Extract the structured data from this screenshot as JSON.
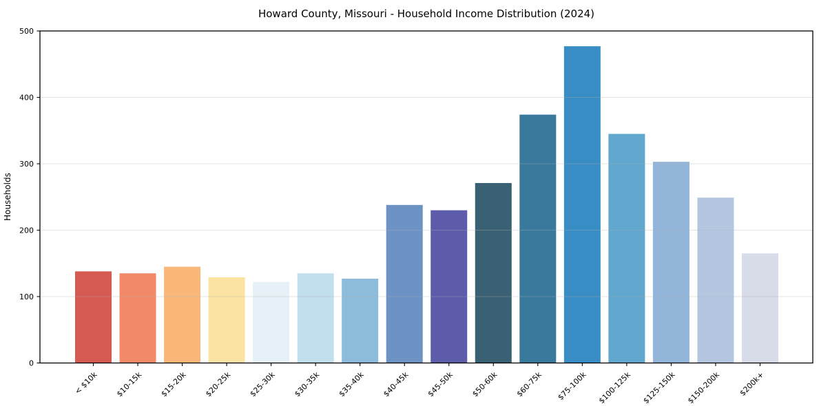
{
  "chart_data": {
    "type": "bar",
    "title": "Howard County, Missouri - Household Income Distribution (2024)",
    "xlabel": "",
    "ylabel": "Households",
    "categories": [
      "< $10k",
      "$10-15k",
      "$15-20k",
      "$20-25k",
      "$25-30k",
      "$30-35k",
      "$35-40k",
      "$40-45k",
      "$45-50k",
      "$50-60k",
      "$60-75k",
      "$75-100k",
      "$100-125k",
      "$125-150k",
      "$150-200k",
      "$200k+"
    ],
    "values": [
      138,
      135,
      145,
      129,
      122,
      135,
      127,
      238,
      230,
      271,
      374,
      477,
      345,
      303,
      249,
      165
    ],
    "bar_colors": [
      "#d55a52",
      "#f28a68",
      "#f9b87a",
      "#fbe3a3",
      "#e5f1f6",
      "#c2dfee",
      "#8dbbdb",
      "#6d93c4",
      "#5c5cab",
      "#3a6073",
      "#38799c",
      "#398dc5",
      "#61a7ce",
      "#92b5d9",
      "#b4c6e0",
      "#d8dbe8"
    ],
    "ylim": [
      0,
      500
    ],
    "yticks": [
      0,
      100,
      200,
      300,
      400,
      500
    ],
    "grid": true,
    "legend_position": "none",
    "x_tick_rotation_deg": 45
  },
  "figure": {
    "background_color": "#ffffff",
    "spine_color": "#000000",
    "grid_color": "#b0b0b0",
    "tick_color": "#000000"
  }
}
